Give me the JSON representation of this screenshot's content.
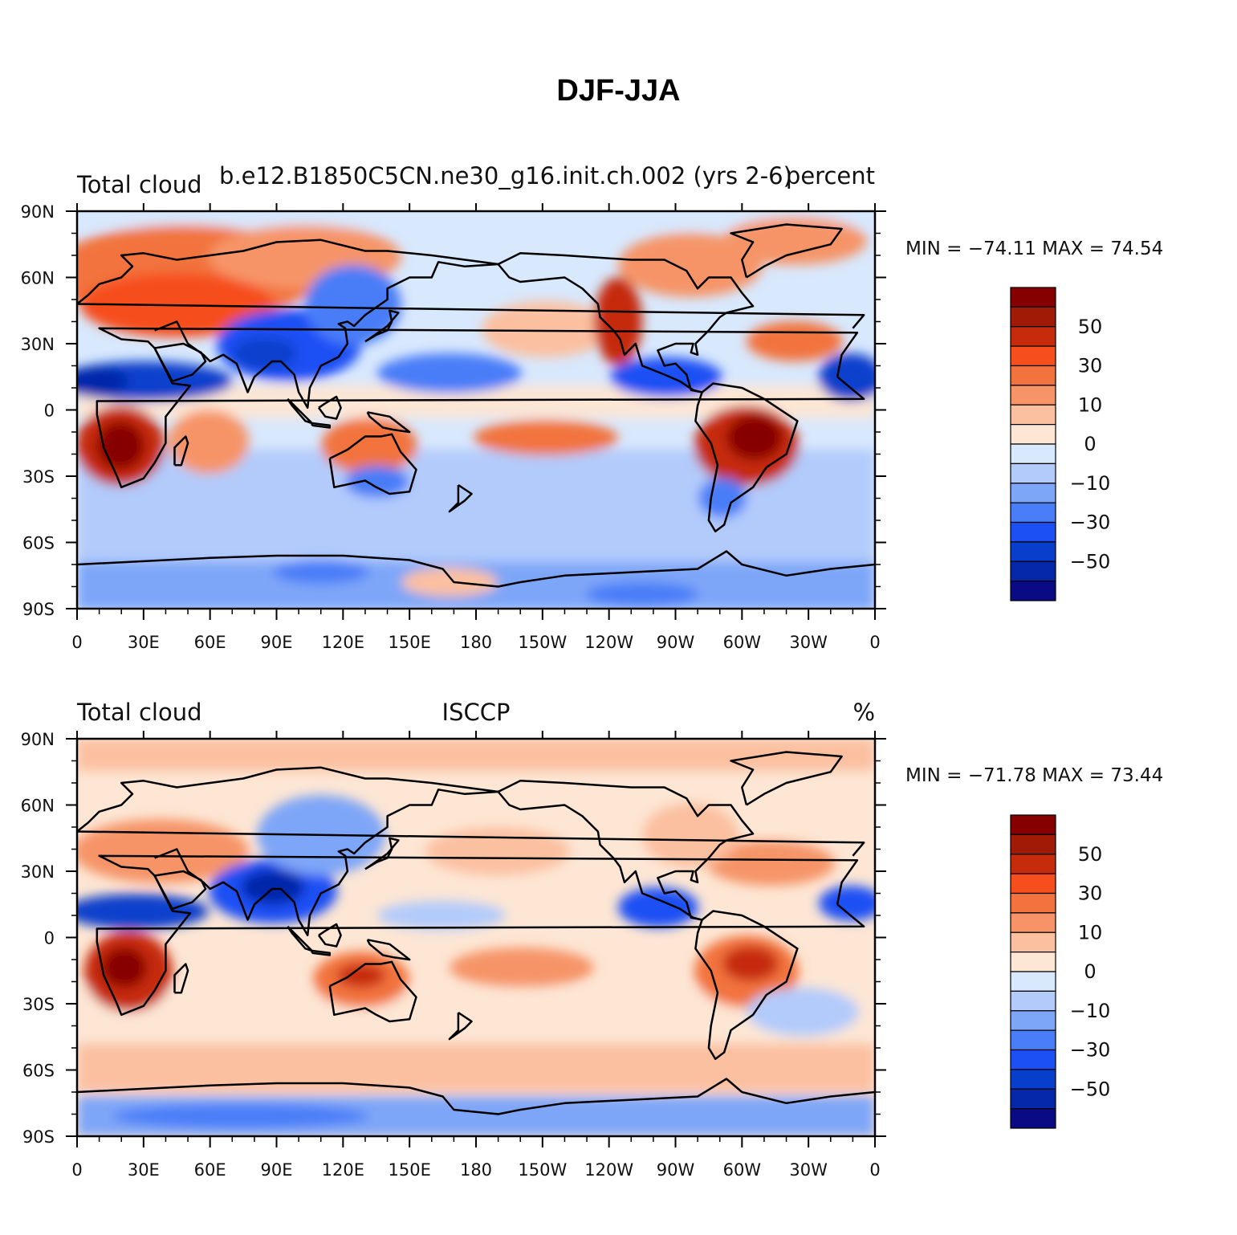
{
  "title": "DJF-JJA",
  "colors": {
    "levels": [
      "#0a0a84",
      "#0527aa",
      "#073fcc",
      "#1c50f4",
      "#4a7df8",
      "#7ea6f8",
      "#b2cbfb",
      "#d8e8fd",
      "#fde6d4",
      "#fbc0a0",
      "#f69468",
      "#f2733d",
      "#f64e1c",
      "#c62c0c",
      "#a11a06",
      "#870000"
    ],
    "coast": "#000000"
  },
  "panels": [
    {
      "id": "model",
      "left_title": "Total cloud",
      "center_title": "b.e12.B1850C5CN.ne30_g16.init.ch.002 (yrs 2-6)",
      "right_title": "percent",
      "stats": "MIN = −74.11  MAX =   74.54",
      "colorbar_labels": [
        "50",
        "30",
        "10",
        "0",
        "−10",
        "−30",
        "−50"
      ]
    },
    {
      "id": "obs",
      "left_title": "Total cloud",
      "center_title": "ISCCP",
      "right_title": "%",
      "stats": "MIN = −71.78  MAX =   73.44",
      "colorbar_labels": [
        "50",
        "30",
        "10",
        "0",
        "−10",
        "−30",
        "−50"
      ]
    }
  ],
  "axes": {
    "lat_labels": [
      "90N",
      "60N",
      "30N",
      "0",
      "30S",
      "60S",
      "90S"
    ],
    "lon_labels": [
      "0",
      "30E",
      "60E",
      "90E",
      "120E",
      "150E",
      "180",
      "150W",
      "120W",
      "90W",
      "60W",
      "30W",
      "0"
    ]
  },
  "chart_data": [
    {
      "type": "heatmap",
      "title": "Total cloud  b.e12.B1850C5CN.ne30_g16.init.ch.002 (yrs 2-6)  percent",
      "projection": "cylindrical equidistant",
      "lon_range": [
        0,
        360
      ],
      "lat_range": [
        -90,
        90
      ],
      "min": -74.11,
      "max": 74.54,
      "contour_levels": [
        -70,
        -60,
        -50,
        -40,
        -30,
        -20,
        -10,
        -5,
        0,
        5,
        10,
        20,
        30,
        40,
        50,
        60,
        70
      ]
    },
    {
      "type": "heatmap",
      "title": "Total cloud  ISCCP  %",
      "projection": "cylindrical equidistant",
      "lon_range": [
        0,
        360
      ],
      "lat_range": [
        -90,
        90
      ],
      "min": -71.78,
      "max": 73.44,
      "contour_levels": [
        -70,
        -60,
        -50,
        -40,
        -30,
        -20,
        -10,
        -5,
        0,
        5,
        10,
        20,
        30,
        40,
        50,
        60,
        70
      ]
    }
  ]
}
